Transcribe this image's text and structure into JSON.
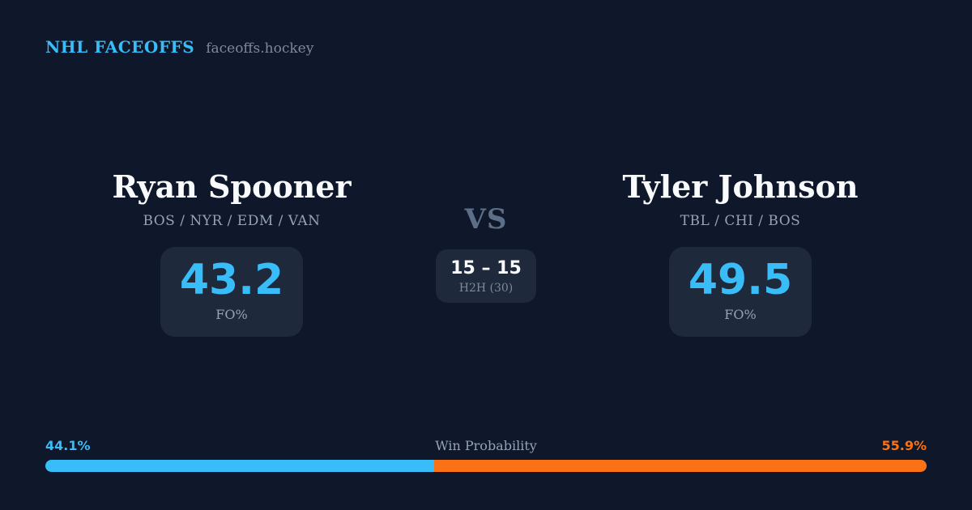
{
  "brand": {
    "title": "NHL FACEOFFS",
    "domain": "faceoffs.hockey"
  },
  "vs_label": "VS",
  "h2h": {
    "score": "15 – 15",
    "label": "H2H (30)"
  },
  "players": {
    "left": {
      "name": "Ryan Spooner",
      "teams": "BOS / NYR / EDM / VAN",
      "fo_value": "43.2",
      "fo_label": "FO%"
    },
    "right": {
      "name": "Tyler Johnson",
      "teams": "TBL / CHI / BOS",
      "fo_value": "49.5",
      "fo_label": "FO%"
    }
  },
  "win_probability": {
    "title": "Win Probability",
    "left_label": "44.1%",
    "right_label": "55.9%",
    "left_value": 44.1,
    "right_value": 55.9
  },
  "colors": {
    "background": "#0f172a",
    "panel": "#1e293b",
    "accent_blue": "#38bdf8",
    "accent_orange": "#f97316",
    "text_primary": "#f8fafc",
    "text_muted": "#94a3b8",
    "vs_color": "#5d6f87"
  }
}
